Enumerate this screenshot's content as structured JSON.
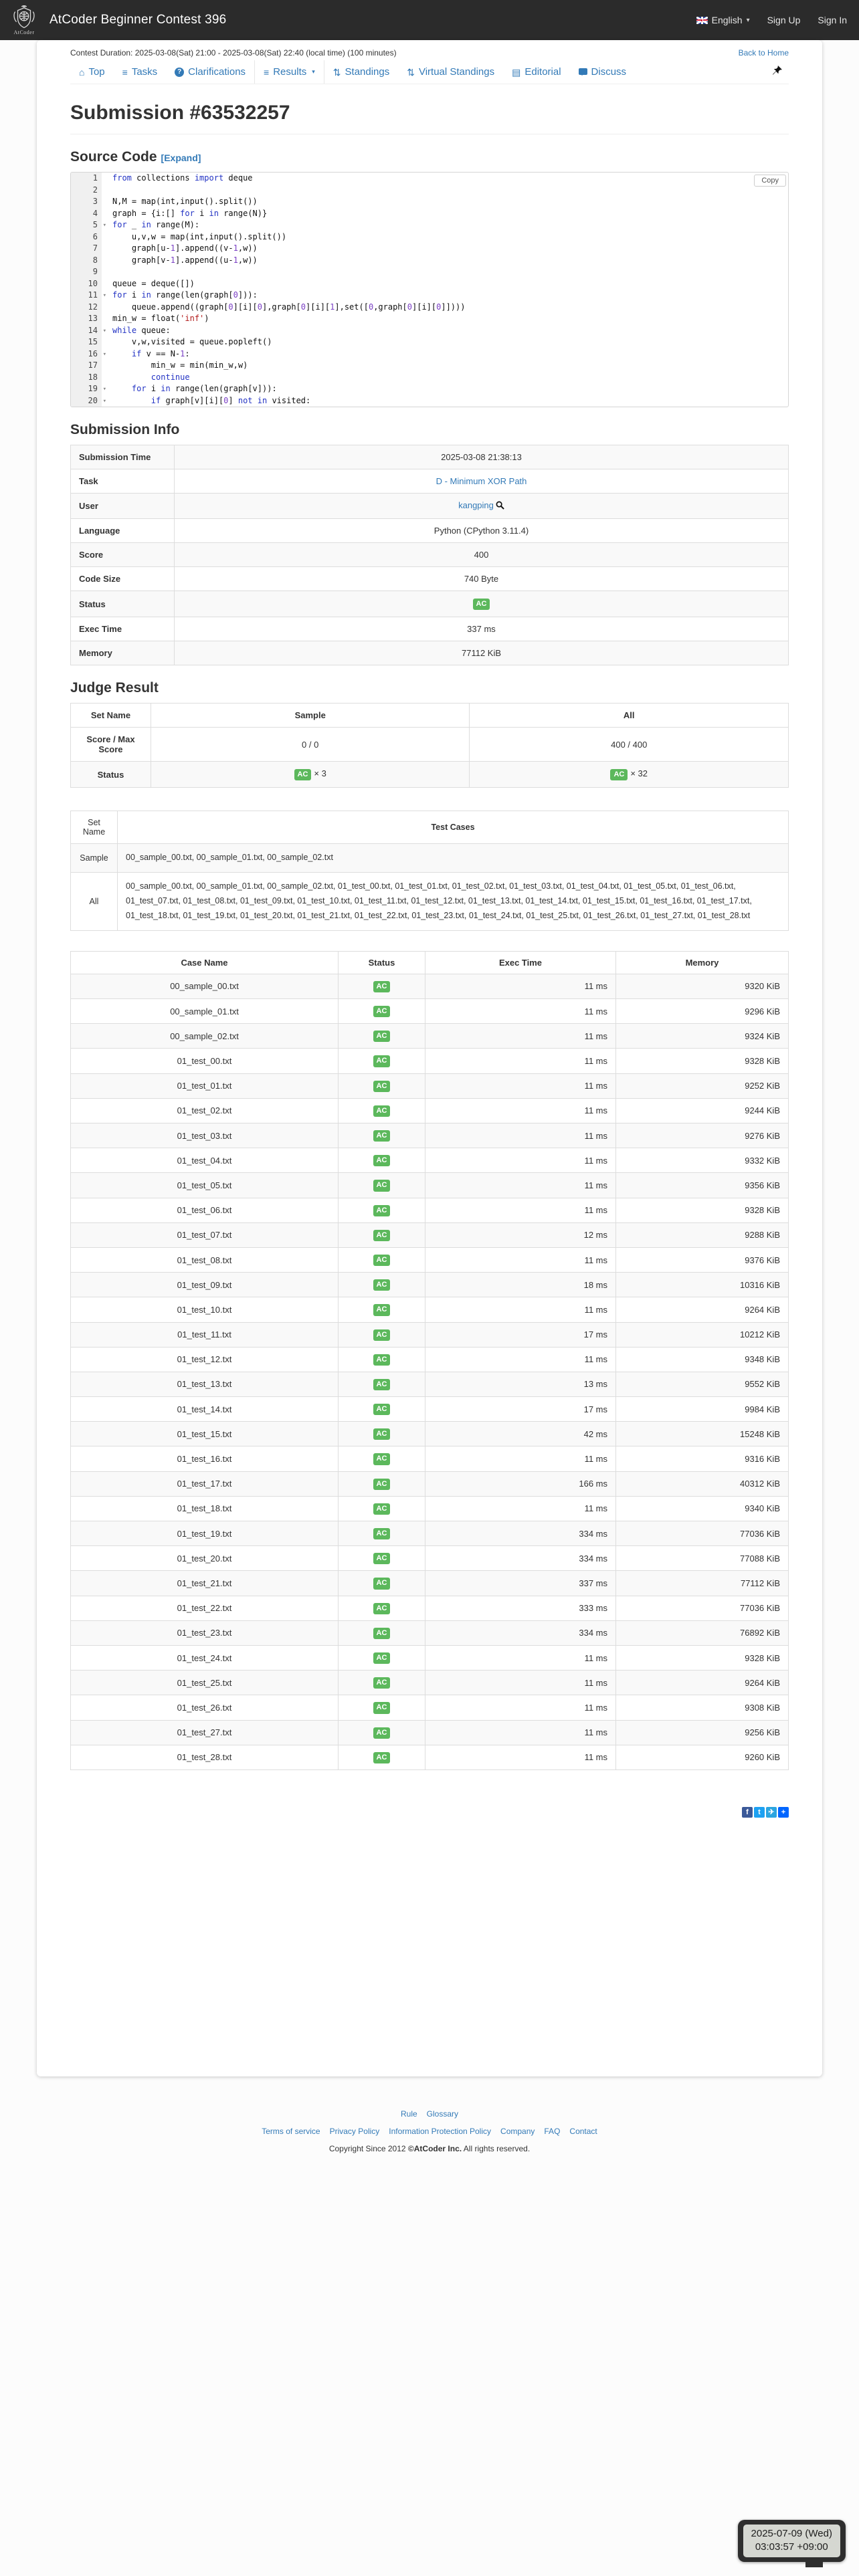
{
  "header": {
    "brand": "AtCoder Beginner Contest 396",
    "logo_caption": "AtCoder",
    "language": "English",
    "sign_up": "Sign Up",
    "sign_in": "Sign In"
  },
  "contest_bar": {
    "duration": "Contest Duration: 2025-03-08(Sat) 21:00 - 2025-03-08(Sat) 22:40 (local time) (100 minutes)",
    "back_to_home": "Back to Home"
  },
  "nav": {
    "items": [
      {
        "id": "top",
        "label": "Top",
        "icon": "home"
      },
      {
        "id": "tasks",
        "label": "Tasks",
        "icon": "tasks"
      },
      {
        "id": "clarifications",
        "label": "Clarifications",
        "icon": "question"
      },
      {
        "id": "results",
        "label": "Results",
        "icon": "list",
        "caret": true,
        "boxed": true
      },
      {
        "id": "standings",
        "label": "Standings",
        "icon": "sort"
      },
      {
        "id": "virtual-standings",
        "label": "Virtual Standings",
        "icon": "sort"
      },
      {
        "id": "editorial",
        "label": "Editorial",
        "icon": "book"
      },
      {
        "id": "discuss",
        "label": "Discuss",
        "icon": "comment"
      }
    ]
  },
  "page": {
    "title": "Submission #63532257"
  },
  "source_code": {
    "heading": "Source Code",
    "expand_label": "[Expand]",
    "copy_label": "Copy",
    "lines": [
      {
        "n": "1",
        "fold": false,
        "toks": [
          [
            "k",
            "from"
          ],
          [
            "d",
            " collections "
          ],
          [
            "k",
            "import"
          ],
          [
            "d",
            " deque"
          ]
        ]
      },
      {
        "n": "2",
        "fold": false,
        "toks": []
      },
      {
        "n": "3",
        "fold": false,
        "toks": [
          [
            "d",
            "N,M = map(int,input().split())"
          ]
        ]
      },
      {
        "n": "4",
        "fold": false,
        "toks": [
          [
            "d",
            "graph = {i:[] "
          ],
          [
            "k",
            "for"
          ],
          [
            "d",
            " i "
          ],
          [
            "k",
            "in"
          ],
          [
            "d",
            " range(N)}"
          ]
        ]
      },
      {
        "n": "5",
        "fold": true,
        "toks": [
          [
            "k",
            "for"
          ],
          [
            "d",
            " _ "
          ],
          [
            "k",
            "in"
          ],
          [
            "d",
            " range(M):"
          ]
        ]
      },
      {
        "n": "6",
        "fold": false,
        "toks": [
          [
            "d",
            "    u,v,w = map(int,input().split())"
          ]
        ]
      },
      {
        "n": "7",
        "fold": false,
        "toks": [
          [
            "d",
            "    graph[u-"
          ],
          [
            "n",
            "1"
          ],
          [
            "d",
            "].append((v-"
          ],
          [
            "n",
            "1"
          ],
          [
            "d",
            ",w))"
          ]
        ]
      },
      {
        "n": "8",
        "fold": false,
        "toks": [
          [
            "d",
            "    graph[v-"
          ],
          [
            "n",
            "1"
          ],
          [
            "d",
            "].append((u-"
          ],
          [
            "n",
            "1"
          ],
          [
            "d",
            ",w))"
          ]
        ]
      },
      {
        "n": "9",
        "fold": false,
        "toks": []
      },
      {
        "n": "10",
        "fold": false,
        "toks": [
          [
            "d",
            "queue = deque([])"
          ]
        ]
      },
      {
        "n": "11",
        "fold": true,
        "toks": [
          [
            "k",
            "for"
          ],
          [
            "d",
            " i "
          ],
          [
            "k",
            "in"
          ],
          [
            "d",
            " range(len(graph["
          ],
          [
            "n",
            "0"
          ],
          [
            "d",
            "])):"
          ]
        ]
      },
      {
        "n": "12",
        "fold": false,
        "toks": [
          [
            "d",
            "    queue.append((graph["
          ],
          [
            "n",
            "0"
          ],
          [
            "d",
            "][i]["
          ],
          [
            "n",
            "0"
          ],
          [
            "d",
            "],graph["
          ],
          [
            "n",
            "0"
          ],
          [
            "d",
            "][i]["
          ],
          [
            "n",
            "1"
          ],
          [
            "d",
            "],set(["
          ],
          [
            "n",
            "0"
          ],
          [
            "d",
            ",graph["
          ],
          [
            "n",
            "0"
          ],
          [
            "d",
            "][i]["
          ],
          [
            "n",
            "0"
          ],
          [
            "d",
            "]])))"
          ]
        ]
      },
      {
        "n": "13",
        "fold": false,
        "toks": [
          [
            "d",
            "min_w = float("
          ],
          [
            "s",
            "'inf'"
          ],
          [
            "d",
            ")"
          ]
        ]
      },
      {
        "n": "14",
        "fold": true,
        "toks": [
          [
            "k",
            "while"
          ],
          [
            "d",
            " queue:"
          ]
        ]
      },
      {
        "n": "15",
        "fold": false,
        "toks": [
          [
            "d",
            "    v,w,visited = queue.popleft()"
          ]
        ]
      },
      {
        "n": "16",
        "fold": true,
        "toks": [
          [
            "d",
            "    "
          ],
          [
            "k",
            "if"
          ],
          [
            "d",
            " v == N-"
          ],
          [
            "n",
            "1"
          ],
          [
            "d",
            ":"
          ]
        ]
      },
      {
        "n": "17",
        "fold": false,
        "toks": [
          [
            "d",
            "        min_w = min(min_w,w)"
          ]
        ]
      },
      {
        "n": "18",
        "fold": false,
        "toks": [
          [
            "d",
            "        "
          ],
          [
            "k",
            "continue"
          ]
        ]
      },
      {
        "n": "19",
        "fold": true,
        "toks": [
          [
            "d",
            "    "
          ],
          [
            "k",
            "for"
          ],
          [
            "d",
            " i "
          ],
          [
            "k",
            "in"
          ],
          [
            "d",
            " range(len(graph[v])):"
          ]
        ]
      },
      {
        "n": "20",
        "fold": true,
        "toks": [
          [
            "d",
            "        "
          ],
          [
            "k",
            "if"
          ],
          [
            "d",
            " graph[v][i]["
          ],
          [
            "n",
            "0"
          ],
          [
            "d",
            "] "
          ],
          [
            "k",
            "not in"
          ],
          [
            "d",
            " visited:"
          ]
        ]
      }
    ]
  },
  "submission_info": {
    "heading": "Submission Info",
    "rows": [
      {
        "label": "Submission Time",
        "value": "2025-03-08 21:38:13",
        "type": "text"
      },
      {
        "label": "Task",
        "value": "D - Minimum XOR Path",
        "type": "link"
      },
      {
        "label": "User",
        "value": "kangping",
        "type": "user"
      },
      {
        "label": "Language",
        "value": "Python (CPython 3.11.4)",
        "type": "text"
      },
      {
        "label": "Score",
        "value": "400",
        "type": "text"
      },
      {
        "label": "Code Size",
        "value": "740 Byte",
        "type": "text"
      },
      {
        "label": "Status",
        "value": "AC",
        "type": "badge"
      },
      {
        "label": "Exec Time",
        "value": "337 ms",
        "type": "text"
      },
      {
        "label": "Memory",
        "value": "77112 KiB",
        "type": "text"
      }
    ]
  },
  "judge_result": {
    "heading": "Judge Result",
    "columns": [
      "Set Name",
      "Sample",
      "All"
    ],
    "score_row": {
      "label": "Score / Max Score",
      "values": [
        "0 / 0",
        "400 / 400"
      ]
    },
    "status_row": {
      "label": "Status",
      "values": [
        {
          "badge": "AC",
          "count": "× 3"
        },
        {
          "badge": "AC",
          "count": "× 32"
        }
      ]
    }
  },
  "test_sets": {
    "columns": [
      "Set Name",
      "Test Cases"
    ],
    "rows": [
      {
        "set": "Sample",
        "cases": "00_sample_00.txt, 00_sample_01.txt, 00_sample_02.txt"
      },
      {
        "set": "All",
        "cases": "00_sample_00.txt, 00_sample_01.txt, 00_sample_02.txt, 01_test_00.txt, 01_test_01.txt, 01_test_02.txt, 01_test_03.txt, 01_test_04.txt, 01_test_05.txt, 01_test_06.txt, 01_test_07.txt, 01_test_08.txt, 01_test_09.txt, 01_test_10.txt, 01_test_11.txt, 01_test_12.txt, 01_test_13.txt, 01_test_14.txt, 01_test_15.txt, 01_test_16.txt, 01_test_17.txt, 01_test_18.txt, 01_test_19.txt, 01_test_20.txt, 01_test_21.txt, 01_test_22.txt, 01_test_23.txt, 01_test_24.txt, 01_test_25.txt, 01_test_26.txt, 01_test_27.txt, 01_test_28.txt"
      }
    ]
  },
  "cases": {
    "columns": [
      "Case Name",
      "Status",
      "Exec Time",
      "Memory"
    ],
    "rows": [
      [
        "00_sample_00.txt",
        "AC",
        "11 ms",
        "9320 KiB"
      ],
      [
        "00_sample_01.txt",
        "AC",
        "11 ms",
        "9296 KiB"
      ],
      [
        "00_sample_02.txt",
        "AC",
        "11 ms",
        "9324 KiB"
      ],
      [
        "01_test_00.txt",
        "AC",
        "11 ms",
        "9328 KiB"
      ],
      [
        "01_test_01.txt",
        "AC",
        "11 ms",
        "9252 KiB"
      ],
      [
        "01_test_02.txt",
        "AC",
        "11 ms",
        "9244 KiB"
      ],
      [
        "01_test_03.txt",
        "AC",
        "11 ms",
        "9276 KiB"
      ],
      [
        "01_test_04.txt",
        "AC",
        "11 ms",
        "9332 KiB"
      ],
      [
        "01_test_05.txt",
        "AC",
        "11 ms",
        "9356 KiB"
      ],
      [
        "01_test_06.txt",
        "AC",
        "11 ms",
        "9328 KiB"
      ],
      [
        "01_test_07.txt",
        "AC",
        "12 ms",
        "9288 KiB"
      ],
      [
        "01_test_08.txt",
        "AC",
        "11 ms",
        "9376 KiB"
      ],
      [
        "01_test_09.txt",
        "AC",
        "18 ms",
        "10316 KiB"
      ],
      [
        "01_test_10.txt",
        "AC",
        "11 ms",
        "9264 KiB"
      ],
      [
        "01_test_11.txt",
        "AC",
        "17 ms",
        "10212 KiB"
      ],
      [
        "01_test_12.txt",
        "AC",
        "11 ms",
        "9348 KiB"
      ],
      [
        "01_test_13.txt",
        "AC",
        "13 ms",
        "9552 KiB"
      ],
      [
        "01_test_14.txt",
        "AC",
        "17 ms",
        "9984 KiB"
      ],
      [
        "01_test_15.txt",
        "AC",
        "42 ms",
        "15248 KiB"
      ],
      [
        "01_test_16.txt",
        "AC",
        "11 ms",
        "9316 KiB"
      ],
      [
        "01_test_17.txt",
        "AC",
        "166 ms",
        "40312 KiB"
      ],
      [
        "01_test_18.txt",
        "AC",
        "11 ms",
        "9340 KiB"
      ],
      [
        "01_test_19.txt",
        "AC",
        "334 ms",
        "77036 KiB"
      ],
      [
        "01_test_20.txt",
        "AC",
        "334 ms",
        "77088 KiB"
      ],
      [
        "01_test_21.txt",
        "AC",
        "337 ms",
        "77112 KiB"
      ],
      [
        "01_test_22.txt",
        "AC",
        "333 ms",
        "77036 KiB"
      ],
      [
        "01_test_23.txt",
        "AC",
        "334 ms",
        "76892 KiB"
      ],
      [
        "01_test_24.txt",
        "AC",
        "11 ms",
        "9328 KiB"
      ],
      [
        "01_test_25.txt",
        "AC",
        "11 ms",
        "9264 KiB"
      ],
      [
        "01_test_26.txt",
        "AC",
        "11 ms",
        "9308 KiB"
      ],
      [
        "01_test_27.txt",
        "AC",
        "11 ms",
        "9256 KiB"
      ],
      [
        "01_test_28.txt",
        "AC",
        "11 ms",
        "9260 KiB"
      ]
    ]
  },
  "share": {
    "items": [
      {
        "name": "facebook",
        "label": "f",
        "color": "#3b5998"
      },
      {
        "name": "twitter",
        "label": "t",
        "color": "#1da1f2"
      },
      {
        "name": "telegram",
        "label": "✈",
        "color": "#2ca5e0"
      },
      {
        "name": "addtoany",
        "label": "+",
        "color": "#0166ff"
      }
    ]
  },
  "footer": {
    "row1": [
      "Rule",
      "Glossary"
    ],
    "row2": [
      "Terms of service",
      "Privacy Policy",
      "Information Protection Policy",
      "Company",
      "FAQ",
      "Contact"
    ],
    "copyright_prefix": "Copyright Since 2012 ",
    "copyright_strong": "©AtCoder Inc.",
    "copyright_suffix": " All rights reserved."
  },
  "clock": {
    "date": "2025-07-09 (Wed)",
    "time": "03:03:57 +09:00"
  },
  "colors": {
    "accent_blue": "#337ab7",
    "status_green": "#5cb85c",
    "header_bg": "#2b2b2b"
  }
}
